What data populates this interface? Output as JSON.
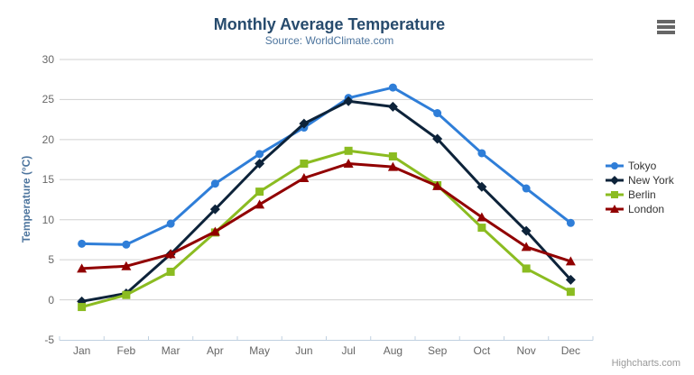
{
  "header": {
    "title": "Monthly Average Temperature",
    "subtitle": "Source: WorldClimate.com"
  },
  "toolbar": {
    "context_menu_icon": "hamburger-icon"
  },
  "chart_data": {
    "type": "line",
    "title": "Monthly Average Temperature",
    "subtitle": "Source: WorldClimate.com",
    "xlabel": "",
    "ylabel": "Temperature (°C)",
    "ylim": [
      -5,
      30
    ],
    "y_ticks": [
      -5,
      0,
      5,
      10,
      15,
      20,
      25,
      30
    ],
    "grid": true,
    "legend_position": "right",
    "categories": [
      "Jan",
      "Feb",
      "Mar",
      "Apr",
      "May",
      "Jun",
      "Jul",
      "Aug",
      "Sep",
      "Oct",
      "Nov",
      "Dec"
    ],
    "series": [
      {
        "name": "Tokyo",
        "color": "#2f7ed8",
        "marker": "circle",
        "values": [
          7.0,
          6.9,
          9.5,
          14.5,
          18.2,
          21.5,
          25.2,
          26.5,
          23.3,
          18.3,
          13.9,
          9.6
        ]
      },
      {
        "name": "New York",
        "color": "#0d233a",
        "marker": "diamond",
        "values": [
          -0.2,
          0.8,
          5.7,
          11.3,
          17.0,
          22.0,
          24.8,
          24.1,
          20.1,
          14.1,
          8.6,
          2.5
        ]
      },
      {
        "name": "Berlin",
        "color": "#8bbc21",
        "marker": "square",
        "values": [
          -0.9,
          0.6,
          3.5,
          8.4,
          13.5,
          17.0,
          18.6,
          17.9,
          14.3,
          9.0,
          3.9,
          1.0
        ]
      },
      {
        "name": "London",
        "color": "#910000",
        "marker": "triangle",
        "values": [
          3.9,
          4.2,
          5.7,
          8.5,
          11.9,
          15.2,
          17.0,
          16.6,
          14.2,
          10.3,
          6.6,
          4.8
        ]
      }
    ]
  },
  "credits": {
    "text": "Highcharts.com"
  },
  "colors": {
    "title": "#274b6d",
    "subtitle": "#4d759e",
    "axis_label": "#666666",
    "grid_line": "#d0d0d0",
    "axis_line": "#c0d0e0",
    "legend_text": "#333333",
    "credits": "#999999",
    "context_icon": "#666666"
  }
}
